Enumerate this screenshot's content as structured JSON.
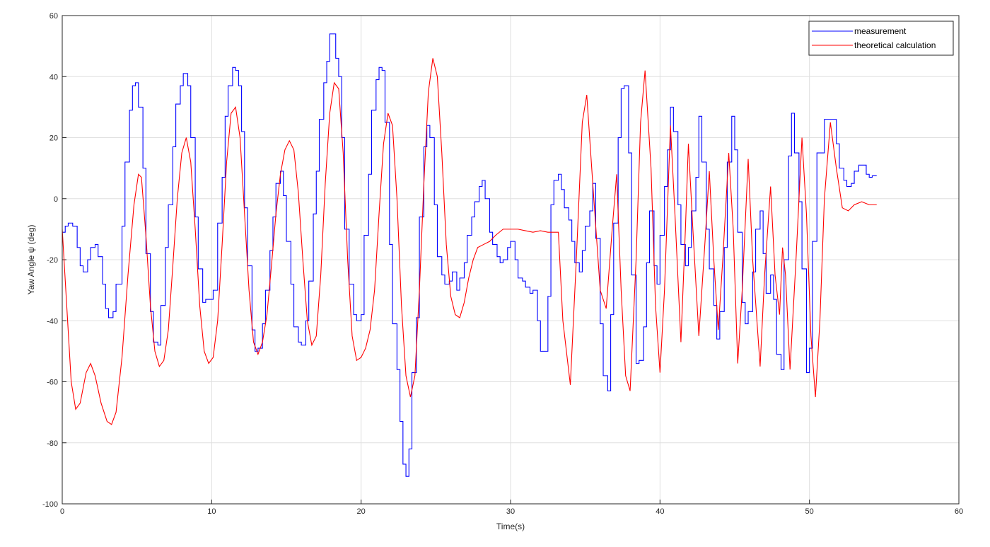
{
  "chart_data": {
    "type": "line",
    "xlabel": "Time(s)",
    "ylabel": "Yaw Angle ψ (deg)",
    "xlim": [
      0,
      60
    ],
    "xticks": [
      0,
      10,
      20,
      30,
      40,
      50,
      60
    ],
    "ylim": [
      -100,
      60
    ],
    "yticks": [
      -100,
      -80,
      -60,
      -40,
      -20,
      0,
      20,
      40,
      60
    ],
    "grid": true,
    "legend": "upper right",
    "series": [
      {
        "name": "measurement",
        "color": "#0000ff",
        "drawstyle": "steps-post",
        "x": [
          0,
          0.2,
          0.4,
          0.7,
          1.0,
          1.2,
          1.4,
          1.7,
          1.9,
          2.2,
          2.4,
          2.7,
          2.9,
          3.1,
          3.4,
          3.6,
          4.0,
          4.2,
          4.5,
          4.7,
          4.9,
          5.1,
          5.4,
          5.6,
          5.9,
          6.1,
          6.4,
          6.6,
          6.9,
          7.1,
          7.4,
          7.6,
          7.9,
          8.1,
          8.4,
          8.6,
          8.9,
          9.1,
          9.4,
          9.6,
          9.9,
          10.1,
          10.4,
          10.7,
          10.9,
          11.1,
          11.4,
          11.6,
          11.8,
          12.0,
          12.2,
          12.4,
          12.7,
          12.9,
          13.1,
          13.4,
          13.6,
          13.9,
          14.1,
          14.3,
          14.6,
          14.8,
          15.0,
          15.3,
          15.5,
          15.8,
          16.0,
          16.3,
          16.5,
          16.8,
          17.0,
          17.2,
          17.5,
          17.7,
          17.9,
          18.3,
          18.5,
          18.7,
          18.9,
          19.2,
          19.5,
          19.7,
          20.0,
          20.2,
          20.5,
          20.7,
          21.0,
          21.2,
          21.4,
          21.6,
          21.9,
          22.1,
          22.4,
          22.6,
          22.8,
          23.0,
          23.2,
          23.4,
          23.7,
          23.9,
          24.2,
          24.4,
          24.6,
          24.9,
          25.1,
          25.4,
          25.6,
          25.9,
          26.1,
          26.4,
          26.6,
          26.9,
          27.1,
          27.4,
          27.6,
          27.9,
          28.1,
          28.3,
          28.6,
          28.8,
          29.1,
          29.3,
          29.5,
          29.8,
          30.0,
          30.3,
          30.5,
          30.8,
          31.0,
          31.3,
          31.5,
          31.8,
          32.0,
          32.3,
          32.5,
          32.7,
          32.9,
          33.2,
          33.4,
          33.6,
          33.9,
          34.1,
          34.3,
          34.6,
          34.8,
          35.0,
          35.3,
          35.5,
          35.7,
          36.0,
          36.2,
          36.5,
          36.7,
          36.9,
          37.2,
          37.4,
          37.6,
          37.9,
          38.1,
          38.4,
          38.6,
          38.9,
          39.1,
          39.3,
          39.6,
          39.8,
          40.0,
          40.3,
          40.5,
          40.7,
          40.9,
          41.2,
          41.4,
          41.7,
          41.9,
          42.1,
          42.4,
          42.6,
          42.8,
          43.1,
          43.3,
          43.6,
          43.8,
          44.0,
          44.3,
          44.5,
          44.8,
          45.0,
          45.2,
          45.5,
          45.7,
          45.9,
          46.2,
          46.4,
          46.7,
          46.9,
          47.1,
          47.4,
          47.6,
          47.8,
          48.1,
          48.3,
          48.6,
          48.8,
          49.0,
          49.3,
          49.5,
          49.8,
          50.0,
          50.2,
          50.5,
          51.0,
          51.5,
          51.8,
          52.0,
          52.3,
          52.5,
          52.8,
          53.0,
          53.3,
          53.6,
          53.8,
          54.0,
          54.2,
          54.5
        ],
        "values": [
          -11,
          -9,
          -8,
          -9,
          -16,
          -22,
          -24,
          -20,
          -16,
          -15,
          -19,
          -28,
          -36,
          -39,
          -37,
          -28,
          -9,
          12,
          29,
          37,
          38,
          30,
          10,
          -18,
          -37,
          -47,
          -48,
          -35,
          -16,
          -2,
          17,
          31,
          37,
          41,
          37,
          20,
          -6,
          -23,
          -34,
          -33,
          -33,
          -30,
          -8,
          7,
          27,
          37,
          43,
          42,
          37,
          22,
          -3,
          -22,
          -43,
          -50,
          -49,
          -41,
          -30,
          -17,
          -6,
          5,
          9,
          1,
          -14,
          -28,
          -42,
          -47,
          -48,
          -40,
          -27,
          -5,
          9,
          26,
          38,
          45,
          54,
          46,
          40,
          20,
          -10,
          -28,
          -38,
          -40,
          -38,
          -12,
          8,
          29,
          39,
          43,
          42,
          25,
          -15,
          -41,
          -56,
          -73,
          -87,
          -91,
          -82,
          -57,
          -39,
          -6,
          17,
          24,
          20,
          -2,
          -19,
          -25,
          -28,
          -27,
          -24,
          -30,
          -26,
          -21,
          -12,
          -6,
          -1,
          4,
          6,
          0,
          -11,
          -15,
          -19,
          -21,
          -20,
          -16,
          -14,
          -20,
          -26,
          -27,
          -29,
          -31,
          -30,
          -40,
          -50,
          -50,
          -32,
          -2,
          6,
          8,
          3,
          -3,
          -7,
          -14,
          -21,
          -24,
          -17,
          -9,
          -4,
          5,
          -13,
          -41,
          -58,
          -63,
          -38,
          -8,
          20,
          36,
          37,
          15,
          -25,
          -54,
          -53,
          -42,
          -21,
          -4,
          -22,
          -28,
          -12,
          4,
          16,
          30,
          22,
          -2,
          -15,
          -22,
          -16,
          -4,
          7,
          27,
          12,
          -10,
          -23,
          -35,
          -46,
          -37,
          -16,
          12,
          27,
          16,
          -11,
          -34,
          -41,
          -37,
          -24,
          -10,
          -4,
          -18,
          -31,
          -25,
          -33,
          -51,
          -56,
          -20,
          14,
          28,
          15,
          -1,
          -23,
          -57,
          -49,
          -14,
          15,
          26,
          26,
          18,
          10,
          6,
          4,
          5,
          9,
          11,
          11,
          8,
          7,
          7.5,
          7.5
        ]
      },
      {
        "name": "theoretical calculation",
        "color": "#ff0000",
        "x": [
          0,
          0.3,
          0.6,
          0.9,
          1.2,
          1.6,
          1.9,
          2.2,
          2.6,
          3.0,
          3.3,
          3.6,
          4.0,
          4.4,
          4.8,
          5.1,
          5.3,
          5.6,
          5.9,
          6.2,
          6.5,
          6.8,
          7.1,
          7.4,
          7.7,
          8.0,
          8.3,
          8.6,
          8.9,
          9.2,
          9.5,
          9.8,
          10.1,
          10.4,
          10.7,
          11.0,
          11.3,
          11.6,
          11.9,
          12.2,
          12.5,
          12.8,
          13.1,
          13.4,
          13.7,
          14.0,
          14.3,
          14.6,
          14.9,
          15.2,
          15.5,
          15.8,
          16.1,
          16.4,
          16.7,
          17.0,
          17.3,
          17.6,
          17.9,
          18.2,
          18.5,
          18.8,
          19.1,
          19.4,
          19.7,
          20.0,
          20.3,
          20.6,
          20.9,
          21.2,
          21.5,
          21.8,
          22.1,
          22.4,
          22.7,
          23.0,
          23.3,
          23.6,
          23.9,
          24.2,
          24.5,
          24.8,
          25.1,
          25.4,
          25.7,
          26.0,
          26.3,
          26.6,
          26.9,
          27.2,
          27.5,
          27.8,
          28.2,
          28.6,
          29.0,
          29.5,
          30.0,
          30.5,
          31.0,
          31.5,
          32.0,
          32.5,
          33.2,
          33.5,
          34.0,
          34.4,
          34.8,
          35.1,
          35.5,
          36.0,
          36.4,
          36.8,
          37.1,
          37.4,
          37.7,
          38.0,
          38.4,
          38.7,
          39.0,
          39.4,
          39.7,
          40.0,
          40.3,
          40.7,
          41.0,
          41.4,
          41.7,
          41.9,
          42.2,
          42.6,
          43.0,
          43.3,
          43.6,
          43.9,
          44.2,
          44.6,
          44.9,
          45.2,
          45.5,
          45.9,
          46.2,
          46.7,
          47.0,
          47.4,
          47.7,
          48.0,
          48.2,
          48.4,
          48.7,
          49.1,
          49.5,
          49.8,
          50.1,
          50.4,
          50.7,
          51.0,
          51.4,
          51.8,
          52.2,
          52.6,
          53.0,
          53.5,
          54.0,
          54.5
        ],
        "values": [
          -10,
          -35,
          -60,
          -69,
          -67,
          -57,
          -54,
          -58,
          -67,
          -73,
          -74,
          -70,
          -52,
          -25,
          -2,
          8,
          7,
          -12,
          -35,
          -50,
          -55,
          -53,
          -43,
          -22,
          0,
          15,
          20,
          12,
          -10,
          -35,
          -50,
          -54,
          -52,
          -40,
          -15,
          12,
          28,
          30,
          20,
          -5,
          -30,
          -47,
          -51,
          -47,
          -38,
          -22,
          -5,
          8,
          16,
          19,
          16,
          2,
          -20,
          -40,
          -48,
          -45,
          -25,
          5,
          28,
          38,
          36,
          15,
          -20,
          -45,
          -53,
          -52,
          -49,
          -43,
          -30,
          -5,
          18,
          28,
          24,
          0,
          -35,
          -58,
          -65,
          -58,
          -30,
          5,
          35,
          46,
          40,
          15,
          -15,
          -32,
          -38,
          -39,
          -34,
          -26,
          -20,
          -16,
          -15,
          -14,
          -12,
          -10,
          -10,
          -10,
          -10.5,
          -11,
          -10.5,
          -11,
          -11,
          -40,
          -61,
          -20,
          25,
          34,
          5,
          -30,
          -36,
          -10,
          8,
          -30,
          -58,
          -63,
          -20,
          25,
          42,
          10,
          -35,
          -57,
          -30,
          24,
          -5,
          -47,
          -10,
          18,
          -10,
          -45,
          -15,
          9,
          -20,
          -43,
          -20,
          15,
          -10,
          -54,
          -30,
          13,
          -20,
          -55,
          -25,
          4,
          -25,
          -38,
          -16,
          -25,
          -56,
          -20,
          20,
          -5,
          -45,
          -65,
          -40,
          0,
          25,
          10,
          -3,
          -4,
          -2,
          -1,
          -2,
          -2
        ]
      }
    ]
  }
}
